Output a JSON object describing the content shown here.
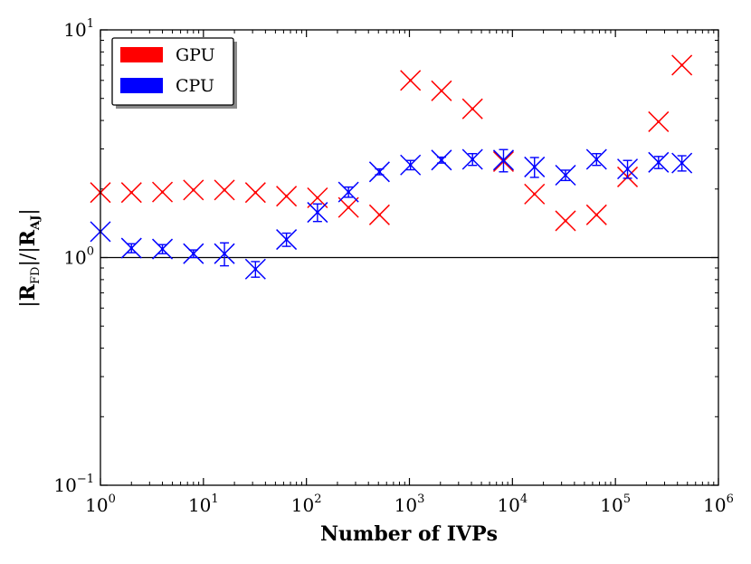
{
  "chart_data": {
    "type": "scatter",
    "title": "",
    "xlabel": "Number of IVPs",
    "ylabel_parts": {
      "open": "|",
      "num_main": "R",
      "num_sub": "FD",
      "divider": "|/|",
      "den_main": "R",
      "den_sub": "AJ",
      "close": "|"
    },
    "x_scale": "log",
    "y_scale": "log",
    "xlim": [
      1,
      1000000
    ],
    "ylim": [
      0.1,
      10
    ],
    "x_ticks": [
      {
        "base": "10",
        "exp": "0",
        "value": 1
      },
      {
        "base": "10",
        "exp": "1",
        "value": 10
      },
      {
        "base": "10",
        "exp": "2",
        "value": 100
      },
      {
        "base": "10",
        "exp": "3",
        "value": 1000
      },
      {
        "base": "10",
        "exp": "4",
        "value": 10000
      },
      {
        "base": "10",
        "exp": "5",
        "value": 100000
      },
      {
        "base": "10",
        "exp": "6",
        "value": 1000000
      }
    ],
    "y_ticks": [
      {
        "base": "10",
        "exp": "−1",
        "value": 0.1
      },
      {
        "base": "10",
        "exp": "0",
        "value": 1
      },
      {
        "base": "10",
        "exp": "1",
        "value": 10
      }
    ],
    "reference_line": {
      "y": 1.0,
      "color": "#000000"
    },
    "legend": {
      "placement": "top-left"
    },
    "series": [
      {
        "name": "GPU",
        "color": "#ff0000",
        "marker": "x",
        "points": [
          {
            "x": 1,
            "y": 1.93,
            "err": 0.0
          },
          {
            "x": 2,
            "y": 1.93,
            "err": 0.0
          },
          {
            "x": 4,
            "y": 1.94,
            "err": 0.0
          },
          {
            "x": 8,
            "y": 1.98,
            "err": 0.0
          },
          {
            "x": 16,
            "y": 1.98,
            "err": 0.0
          },
          {
            "x": 32,
            "y": 1.93,
            "err": 0.0
          },
          {
            "x": 64,
            "y": 1.86,
            "err": 0.0
          },
          {
            "x": 128,
            "y": 1.83,
            "err": 0.0
          },
          {
            "x": 256,
            "y": 1.66,
            "err": 0.0
          },
          {
            "x": 512,
            "y": 1.54,
            "err": 0.0
          },
          {
            "x": 1024,
            "y": 6.0,
            "err": 0.0
          },
          {
            "x": 2048,
            "y": 5.4,
            "err": 0.0
          },
          {
            "x": 4096,
            "y": 4.5,
            "err": 0.0
          },
          {
            "x": 8192,
            "y": 2.64,
            "err": 0.0
          },
          {
            "x": 16384,
            "y": 1.9,
            "err": 0.0
          },
          {
            "x": 32768,
            "y": 1.45,
            "err": 0.0
          },
          {
            "x": 65536,
            "y": 1.54,
            "err": 0.0
          },
          {
            "x": 131072,
            "y": 2.26,
            "err": 0.0
          },
          {
            "x": 262144,
            "y": 3.95,
            "err": 0.0
          },
          {
            "x": 442000,
            "y": 7.0,
            "err": 0.0
          }
        ]
      },
      {
        "name": "CPU",
        "color": "#0000ff",
        "marker": "x",
        "points": [
          {
            "x": 1,
            "y": 1.3,
            "err": 0.0
          },
          {
            "x": 2,
            "y": 1.1,
            "err": 0.05
          },
          {
            "x": 4,
            "y": 1.09,
            "err": 0.05
          },
          {
            "x": 8,
            "y": 1.04,
            "err": 0.04
          },
          {
            "x": 16,
            "y": 1.04,
            "err": 0.12
          },
          {
            "x": 32,
            "y": 0.89,
            "err": 0.07
          },
          {
            "x": 64,
            "y": 1.2,
            "err": 0.08
          },
          {
            "x": 128,
            "y": 1.58,
            "err": 0.14
          },
          {
            "x": 256,
            "y": 1.94,
            "err": 0.1
          },
          {
            "x": 512,
            "y": 2.38,
            "err": 0.07
          },
          {
            "x": 1024,
            "y": 2.55,
            "err": 0.12
          },
          {
            "x": 2048,
            "y": 2.68,
            "err": 0.08
          },
          {
            "x": 4096,
            "y": 2.7,
            "err": 0.16
          },
          {
            "x": 8192,
            "y": 2.68,
            "err": 0.3
          },
          {
            "x": 16384,
            "y": 2.5,
            "err": 0.25
          },
          {
            "x": 32768,
            "y": 2.3,
            "err": 0.12
          },
          {
            "x": 65536,
            "y": 2.7,
            "err": 0.16
          },
          {
            "x": 131072,
            "y": 2.45,
            "err": 0.22
          },
          {
            "x": 262144,
            "y": 2.62,
            "err": 0.16
          },
          {
            "x": 442000,
            "y": 2.6,
            "err": 0.2
          }
        ]
      }
    ]
  }
}
